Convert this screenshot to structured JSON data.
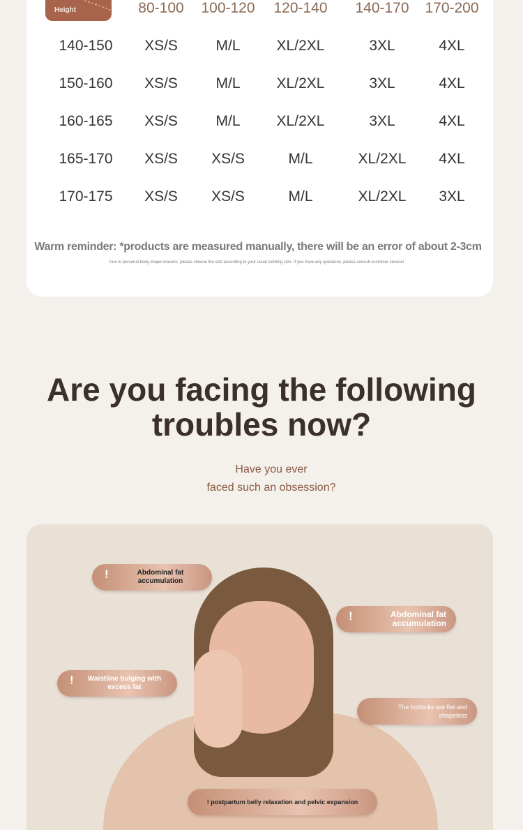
{
  "size_table": {
    "corner_label": "Height",
    "weight_headers": [
      "80-100",
      "100-120",
      "120-140",
      "140-170",
      "170-200"
    ],
    "rows": [
      {
        "height": "140-150",
        "sizes": [
          "XS/S",
          "M/L",
          "XL/2XL",
          "3XL",
          "4XL"
        ]
      },
      {
        "height": "150-160",
        "sizes": [
          "XS/S",
          "M/L",
          "XL/2XL",
          "3XL",
          "4XL"
        ]
      },
      {
        "height": "160-165",
        "sizes": [
          "XS/S",
          "M/L",
          "XL/2XL",
          "3XL",
          "4XL"
        ]
      },
      {
        "height": "165-170",
        "sizes": [
          "XS/S",
          "XS/S",
          "M/L",
          "XL/2XL",
          "4XL"
        ]
      },
      {
        "height": "170-175",
        "sizes": [
          "XS/S",
          "XS/S",
          "M/L",
          "XL/2XL",
          "3XL"
        ]
      }
    ],
    "reminder": "Warm reminder: *products are measured manually, there will be an error of about 2-3cm",
    "note": "Due to personal body shape reasons, please choose the size according to your usual clothing size. If you have any questions, please consult customer service!"
  },
  "troubles": {
    "title": "Are you facing the following troubles now?",
    "subtitle_line1": "Have you ever",
    "subtitle_line2": "faced such an obsession?",
    "callouts": [
      {
        "icon": "exclamation-icon",
        "text": "Abdominal fat accumulation"
      },
      {
        "icon": "exclamation-icon",
        "text": "Abdominal fat accumulation"
      },
      {
        "icon": "exclamation-icon",
        "text": "Waistline bulging with excess fat"
      },
      {
        "icon": "exclamation-icon",
        "text": "The buttocks are flat and shapeless"
      },
      {
        "icon": "exclamation-icon",
        "text": "! postpartum belly relaxation and pelvic expansion"
      }
    ]
  },
  "colors": {
    "accent": "#a8644a",
    "background": "#f4f0ec",
    "title": "#3a2f2b"
  }
}
